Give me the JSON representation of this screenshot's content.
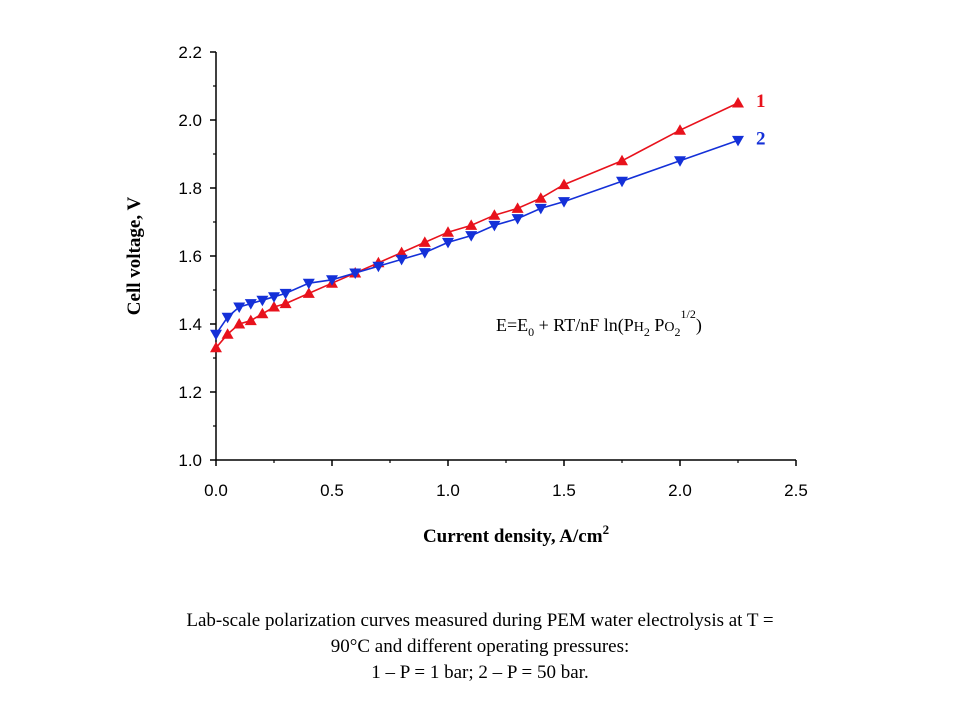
{
  "chart_data": {
    "type": "line",
    "xlabel": "Current density, A/cm",
    "xlabel_sup": "2",
    "ylabel": "Cell voltage, V",
    "xlim": [
      0,
      2.5
    ],
    "ylim": [
      1.0,
      2.2
    ],
    "x_ticks": [
      "0.0",
      "0.5",
      "1.0",
      "1.5",
      "2.0",
      "2.5"
    ],
    "y_ticks": [
      "1.0",
      "1.2",
      "1.4",
      "1.6",
      "1.8",
      "2.0",
      "2.2"
    ],
    "grid": false,
    "series": [
      {
        "name": "1",
        "color": "#e8121c",
        "marker": "triangle-up",
        "x": [
          0.0,
          0.05,
          0.1,
          0.15,
          0.2,
          0.25,
          0.3,
          0.4,
          0.5,
          0.6,
          0.7,
          0.8,
          0.9,
          1.0,
          1.1,
          1.2,
          1.3,
          1.4,
          1.5,
          1.75,
          2.0,
          2.25
        ],
        "y": [
          1.33,
          1.37,
          1.4,
          1.41,
          1.43,
          1.45,
          1.46,
          1.49,
          1.52,
          1.55,
          1.58,
          1.61,
          1.64,
          1.67,
          1.69,
          1.72,
          1.74,
          1.77,
          1.81,
          1.88,
          1.97,
          2.05
        ]
      },
      {
        "name": "2",
        "color": "#1430d8",
        "marker": "triangle-down",
        "x": [
          0.0,
          0.05,
          0.1,
          0.15,
          0.2,
          0.25,
          0.3,
          0.4,
          0.5,
          0.6,
          0.7,
          0.8,
          0.9,
          1.0,
          1.1,
          1.2,
          1.3,
          1.4,
          1.5,
          1.75,
          2.0,
          2.25
        ],
        "y": [
          1.37,
          1.42,
          1.45,
          1.46,
          1.47,
          1.48,
          1.49,
          1.52,
          1.53,
          1.55,
          1.57,
          1.59,
          1.61,
          1.64,
          1.66,
          1.69,
          1.71,
          1.74,
          1.76,
          1.82,
          1.88,
          1.94
        ]
      }
    ],
    "annotation": {
      "parts": [
        {
          "t": "E=E",
          "s": ""
        },
        {
          "t": "0",
          "s": "sub"
        },
        {
          "t": " + RT/nF ln(P",
          "s": ""
        },
        {
          "t": "H",
          "s": "small"
        },
        {
          "t": "2",
          "s": "sub"
        },
        {
          "t": " P",
          "s": ""
        },
        {
          "t": "O",
          "s": "small"
        },
        {
          "t": "2",
          "s": "sub"
        },
        {
          "t": "1/2",
          "s": "sup"
        },
        {
          "t": ")",
          "s": ""
        }
      ]
    }
  },
  "caption": {
    "line1": "Lab-scale polarization curves measured during PEM water electrolysis at T =",
    "line2": "90°C and different operating pressures:",
    "line3": "1 – P = 1 bar; 2 – P = 50 bar."
  }
}
